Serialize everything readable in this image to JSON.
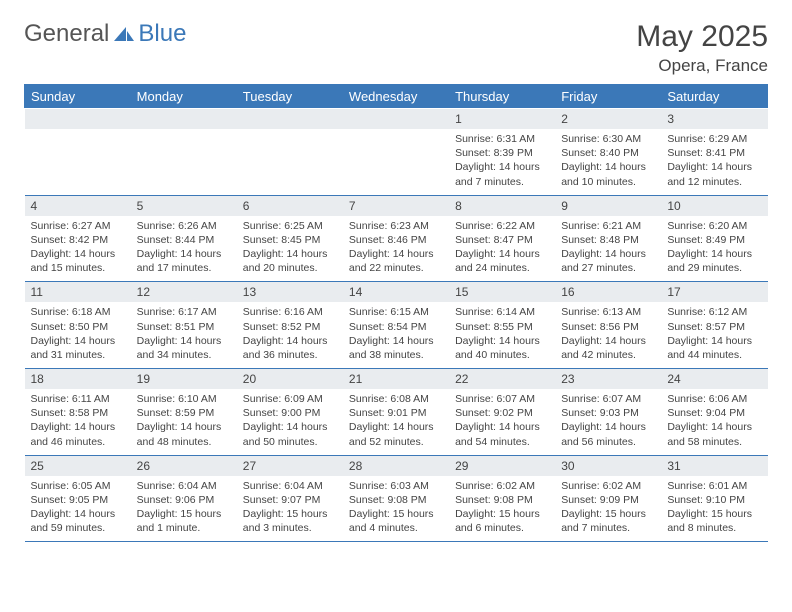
{
  "logo": {
    "text1": "General",
    "text2": "Blue"
  },
  "title": "May 2025",
  "location": "Opera, France",
  "colors": {
    "header_bg": "#3b78b8",
    "header_text": "#ffffff",
    "daynum_bg": "#e9ecef",
    "text": "#444444",
    "border": "#3b78b8"
  },
  "typography": {
    "title_fontsize": 30,
    "location_fontsize": 17,
    "header_fontsize": 13,
    "daynum_fontsize": 12,
    "detail_fontsize": 10.5
  },
  "day_headers": [
    "Sunday",
    "Monday",
    "Tuesday",
    "Wednesday",
    "Thursday",
    "Friday",
    "Saturday"
  ],
  "weeks": [
    {
      "nums": [
        "",
        "",
        "",
        "",
        "1",
        "2",
        "3"
      ],
      "details": [
        "",
        "",
        "",
        "",
        "Sunrise: 6:31 AM\nSunset: 8:39 PM\nDaylight: 14 hours and 7 minutes.",
        "Sunrise: 6:30 AM\nSunset: 8:40 PM\nDaylight: 14 hours and 10 minutes.",
        "Sunrise: 6:29 AM\nSunset: 8:41 PM\nDaylight: 14 hours and 12 minutes."
      ]
    },
    {
      "nums": [
        "4",
        "5",
        "6",
        "7",
        "8",
        "9",
        "10"
      ],
      "details": [
        "Sunrise: 6:27 AM\nSunset: 8:42 PM\nDaylight: 14 hours and 15 minutes.",
        "Sunrise: 6:26 AM\nSunset: 8:44 PM\nDaylight: 14 hours and 17 minutes.",
        "Sunrise: 6:25 AM\nSunset: 8:45 PM\nDaylight: 14 hours and 20 minutes.",
        "Sunrise: 6:23 AM\nSunset: 8:46 PM\nDaylight: 14 hours and 22 minutes.",
        "Sunrise: 6:22 AM\nSunset: 8:47 PM\nDaylight: 14 hours and 24 minutes.",
        "Sunrise: 6:21 AM\nSunset: 8:48 PM\nDaylight: 14 hours and 27 minutes.",
        "Sunrise: 6:20 AM\nSunset: 8:49 PM\nDaylight: 14 hours and 29 minutes."
      ]
    },
    {
      "nums": [
        "11",
        "12",
        "13",
        "14",
        "15",
        "16",
        "17"
      ],
      "details": [
        "Sunrise: 6:18 AM\nSunset: 8:50 PM\nDaylight: 14 hours and 31 minutes.",
        "Sunrise: 6:17 AM\nSunset: 8:51 PM\nDaylight: 14 hours and 34 minutes.",
        "Sunrise: 6:16 AM\nSunset: 8:52 PM\nDaylight: 14 hours and 36 minutes.",
        "Sunrise: 6:15 AM\nSunset: 8:54 PM\nDaylight: 14 hours and 38 minutes.",
        "Sunrise: 6:14 AM\nSunset: 8:55 PM\nDaylight: 14 hours and 40 minutes.",
        "Sunrise: 6:13 AM\nSunset: 8:56 PM\nDaylight: 14 hours and 42 minutes.",
        "Sunrise: 6:12 AM\nSunset: 8:57 PM\nDaylight: 14 hours and 44 minutes."
      ]
    },
    {
      "nums": [
        "18",
        "19",
        "20",
        "21",
        "22",
        "23",
        "24"
      ],
      "details": [
        "Sunrise: 6:11 AM\nSunset: 8:58 PM\nDaylight: 14 hours and 46 minutes.",
        "Sunrise: 6:10 AM\nSunset: 8:59 PM\nDaylight: 14 hours and 48 minutes.",
        "Sunrise: 6:09 AM\nSunset: 9:00 PM\nDaylight: 14 hours and 50 minutes.",
        "Sunrise: 6:08 AM\nSunset: 9:01 PM\nDaylight: 14 hours and 52 minutes.",
        "Sunrise: 6:07 AM\nSunset: 9:02 PM\nDaylight: 14 hours and 54 minutes.",
        "Sunrise: 6:07 AM\nSunset: 9:03 PM\nDaylight: 14 hours and 56 minutes.",
        "Sunrise: 6:06 AM\nSunset: 9:04 PM\nDaylight: 14 hours and 58 minutes."
      ]
    },
    {
      "nums": [
        "25",
        "26",
        "27",
        "28",
        "29",
        "30",
        "31"
      ],
      "details": [
        "Sunrise: 6:05 AM\nSunset: 9:05 PM\nDaylight: 14 hours and 59 minutes.",
        "Sunrise: 6:04 AM\nSunset: 9:06 PM\nDaylight: 15 hours and 1 minute.",
        "Sunrise: 6:04 AM\nSunset: 9:07 PM\nDaylight: 15 hours and 3 minutes.",
        "Sunrise: 6:03 AM\nSunset: 9:08 PM\nDaylight: 15 hours and 4 minutes.",
        "Sunrise: 6:02 AM\nSunset: 9:08 PM\nDaylight: 15 hours and 6 minutes.",
        "Sunrise: 6:02 AM\nSunset: 9:09 PM\nDaylight: 15 hours and 7 minutes.",
        "Sunrise: 6:01 AM\nSunset: 9:10 PM\nDaylight: 15 hours and 8 minutes."
      ]
    }
  ]
}
